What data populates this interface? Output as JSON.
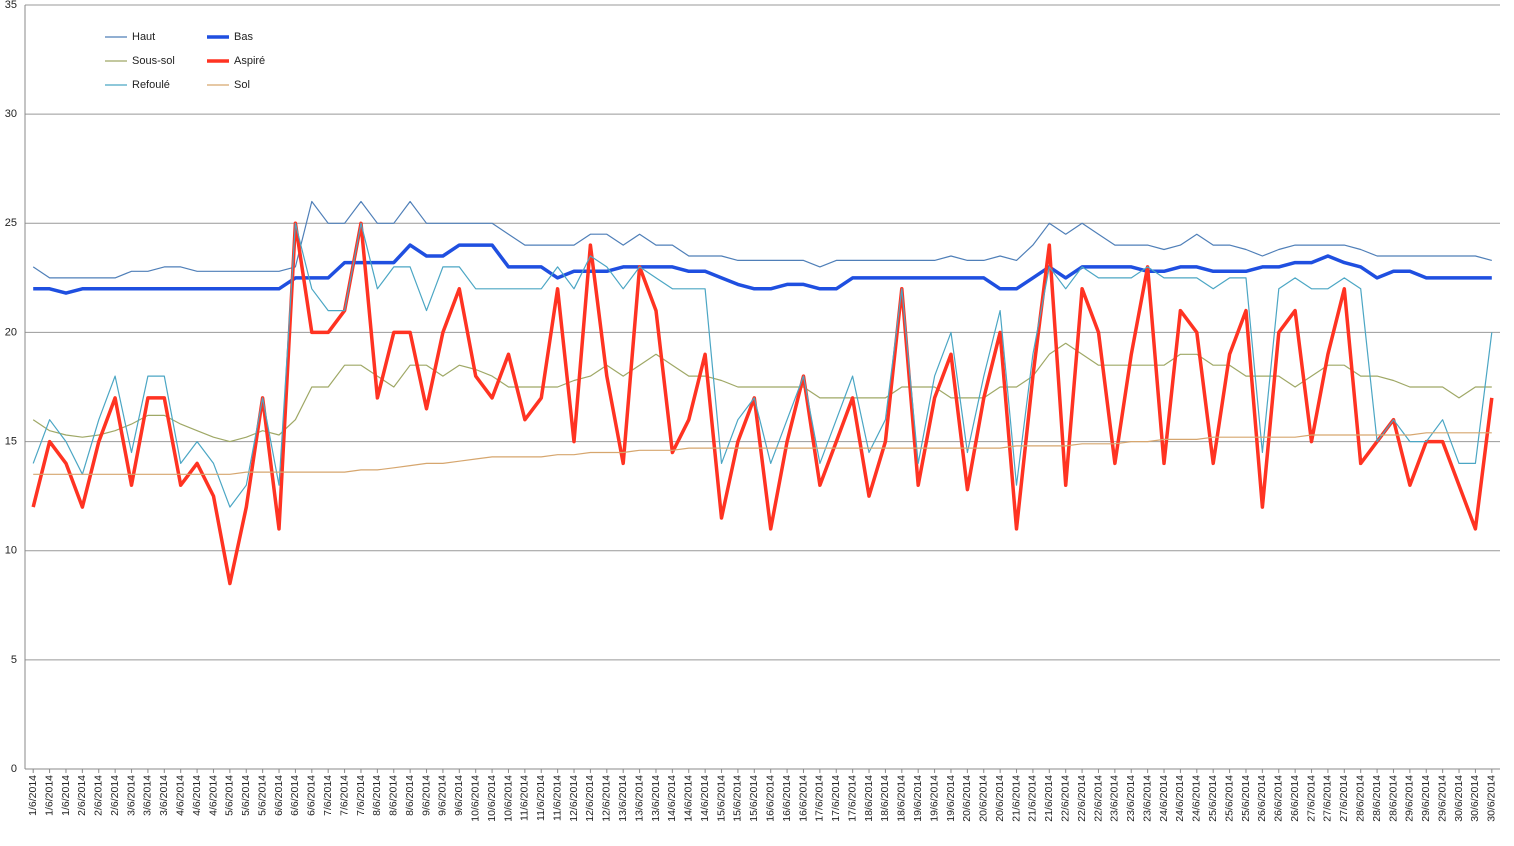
{
  "chart_data": {
    "type": "line",
    "categories": [
      "1/6/2014",
      "1/6/2014",
      "1/6/2014",
      "2/6/2014",
      "2/6/2014",
      "2/6/2014",
      "3/6/2014",
      "3/6/2014",
      "3/6/2014",
      "4/6/2014",
      "4/6/2014",
      "4/6/2014",
      "5/6/2014",
      "5/6/2014",
      "5/6/2014",
      "6/6/2014",
      "6/6/2014",
      "6/6/2014",
      "7/6/2014",
      "7/6/2014",
      "7/6/2014",
      "8/6/2014",
      "8/6/2014",
      "8/6/2014",
      "9/6/2014",
      "9/6/2014",
      "9/6/2014",
      "10/6/2014",
      "10/6/2014",
      "10/6/2014",
      "11/6/2014",
      "11/6/2014",
      "11/6/2014",
      "12/6/2014",
      "12/6/2014",
      "12/6/2014",
      "13/6/2014",
      "13/6/2014",
      "13/6/2014",
      "14/6/2014",
      "14/6/2014",
      "14/6/2014",
      "15/6/2014",
      "15/6/2014",
      "15/6/2014",
      "16/6/2014",
      "16/6/2014",
      "16/6/2014",
      "17/6/2014",
      "17/6/2014",
      "17/6/2014",
      "18/6/2014",
      "18/6/2014",
      "18/6/2014",
      "19/6/2014",
      "19/6/2014",
      "19/6/2014",
      "20/6/2014",
      "20/6/2014",
      "20/6/2014",
      "21/6/2014",
      "21/6/2014",
      "21/6/2014",
      "22/6/2014",
      "22/6/2014",
      "22/6/2014",
      "23/6/2014",
      "23/6/2014",
      "23/6/2014",
      "24/6/2014",
      "24/6/2014",
      "24/6/2014",
      "25/6/2014",
      "25/6/2014",
      "25/6/2014",
      "26/6/2014",
      "26/6/2014",
      "26/6/2014",
      "27/6/2014",
      "27/6/2014",
      "27/6/2014",
      "28/6/2014",
      "28/6/2014",
      "28/6/2014",
      "29/6/2014",
      "29/6/2014",
      "29/6/2014",
      "30/6/2014",
      "30/6/2014",
      "30/6/2014"
    ],
    "series": [
      {
        "name": "Haut",
        "color": "#4f7fb8",
        "line_width": 1.2,
        "values": [
          23,
          22.5,
          22.5,
          22.5,
          22.5,
          22.5,
          22.8,
          22.8,
          23,
          23,
          22.8,
          22.8,
          22.8,
          22.8,
          22.8,
          22.8,
          23,
          26,
          25,
          25,
          26,
          25,
          25,
          26,
          25,
          25,
          25,
          25,
          25,
          24.5,
          24,
          24,
          24,
          24,
          24.5,
          24.5,
          24,
          24.5,
          24,
          24,
          23.5,
          23.5,
          23.5,
          23.3,
          23.3,
          23.3,
          23.3,
          23.3,
          23,
          23.3,
          23.3,
          23.3,
          23.3,
          23.3,
          23.3,
          23.3,
          23.5,
          23.3,
          23.3,
          23.5,
          23.3,
          24,
          25,
          24.5,
          25,
          24.5,
          24,
          24,
          24,
          23.8,
          24,
          24.5,
          24,
          24,
          23.8,
          23.5,
          23.8,
          24,
          24,
          24,
          24,
          23.8,
          23.5,
          23.5,
          23.5,
          23.5,
          23.5,
          23.5,
          23.5,
          23.3
        ]
      },
      {
        "name": "Bas",
        "color": "#1f4fe0",
        "line_width": 3.5,
        "values": [
          22,
          22,
          21.8,
          22,
          22,
          22,
          22,
          22,
          22,
          22,
          22,
          22,
          22,
          22,
          22,
          22,
          22.5,
          22.5,
          22.5,
          23.2,
          23.2,
          23.2,
          23.2,
          24,
          23.5,
          23.5,
          24,
          24,
          24,
          23,
          23,
          23,
          22.5,
          22.8,
          22.8,
          22.8,
          23,
          23,
          23,
          23,
          22.8,
          22.8,
          22.5,
          22.2,
          22,
          22,
          22.2,
          22.2,
          22,
          22,
          22.5,
          22.5,
          22.5,
          22.5,
          22.5,
          22.5,
          22.5,
          22.5,
          22.5,
          22,
          22,
          22.5,
          23,
          22.5,
          23,
          23,
          23,
          23,
          22.8,
          22.8,
          23,
          23,
          22.8,
          22.8,
          22.8,
          23,
          23,
          23.2,
          23.2,
          23.5,
          23.2,
          23,
          22.5,
          22.8,
          22.8,
          22.5,
          22.5,
          22.5,
          22.5,
          22.5
        ]
      },
      {
        "name": "Sous-sol",
        "color": "#9fa866",
        "line_width": 1.2,
        "values": [
          16,
          15.5,
          15.3,
          15.2,
          15.3,
          15.5,
          15.8,
          16.2,
          16.2,
          15.8,
          15.5,
          15.2,
          15,
          15.2,
          15.5,
          15.3,
          16,
          17.5,
          17.5,
          18.5,
          18.5,
          18,
          17.5,
          18.5,
          18.5,
          18,
          18.5,
          18.3,
          18,
          17.5,
          17.5,
          17.5,
          17.5,
          17.8,
          18,
          18.5,
          18,
          18.5,
          19,
          18.5,
          18,
          18,
          17.8,
          17.5,
          17.5,
          17.5,
          17.5,
          17.5,
          17,
          17,
          17,
          17,
          17,
          17.5,
          17.5,
          17.5,
          17,
          17,
          17,
          17.5,
          17.5,
          18,
          19,
          19.5,
          19,
          18.5,
          18.5,
          18.5,
          18.5,
          18.5,
          19,
          19,
          18.5,
          18.5,
          18,
          18,
          18,
          17.5,
          18,
          18.5,
          18.5,
          18,
          18,
          17.8,
          17.5,
          17.5,
          17.5,
          17,
          17.5,
          17.5
        ]
      },
      {
        "name": "Aspiré",
        "color": "#ff3322",
        "line_width": 3.5,
        "values": [
          12,
          15,
          14,
          12,
          15,
          17,
          13,
          17,
          17,
          13,
          14,
          12.5,
          8.5,
          12,
          17,
          11,
          25,
          20,
          20,
          21,
          25,
          17,
          20,
          20,
          16.5,
          20,
          22,
          18,
          17,
          19,
          16,
          17,
          22,
          15,
          24,
          18,
          14,
          23,
          21,
          14.5,
          16,
          19,
          11.5,
          15,
          17,
          11,
          15,
          18,
          13,
          15,
          17,
          12.5,
          15,
          22,
          13,
          17,
          19,
          12.8,
          17,
          20,
          11,
          18,
          24,
          13,
          22,
          20,
          14,
          19,
          23,
          14,
          21,
          20,
          14,
          19,
          21,
          12,
          20,
          21,
          15,
          19,
          22,
          14,
          15,
          16,
          13,
          15,
          15,
          13,
          11,
          17
        ]
      },
      {
        "name": "Refoulé",
        "color": "#4ba6c4",
        "line_width": 1.2,
        "values": [
          14,
          16,
          15,
          13.5,
          16,
          18,
          14.5,
          18,
          18,
          14,
          15,
          14,
          12,
          13,
          17,
          13,
          25,
          22,
          21,
          21,
          25,
          22,
          23,
          23,
          21,
          23,
          23,
          22,
          22,
          22,
          22,
          22,
          23,
          22,
          23.5,
          23,
          22,
          23,
          22.5,
          22,
          22,
          22,
          14,
          16,
          17,
          14,
          16,
          18,
          14,
          16,
          18,
          14.5,
          16,
          22,
          14,
          18,
          20,
          14.5,
          18,
          21,
          13,
          19,
          23,
          22,
          23,
          22.5,
          22.5,
          22.5,
          23,
          22.5,
          22.5,
          22.5,
          22,
          22.5,
          22.5,
          14.5,
          22,
          22.5,
          22,
          22,
          22.5,
          22,
          15,
          16,
          15,
          15,
          16,
          14,
          14,
          20
        ]
      },
      {
        "name": "Sol",
        "color": "#d6a66e",
        "line_width": 1.2,
        "values": [
          13.5,
          13.5,
          13.5,
          13.5,
          13.5,
          13.5,
          13.5,
          13.5,
          13.5,
          13.5,
          13.5,
          13.5,
          13.5,
          13.6,
          13.6,
          13.6,
          13.6,
          13.6,
          13.6,
          13.6,
          13.7,
          13.7,
          13.8,
          13.9,
          14,
          14,
          14.1,
          14.2,
          14.3,
          14.3,
          14.3,
          14.3,
          14.4,
          14.4,
          14.5,
          14.5,
          14.5,
          14.6,
          14.6,
          14.6,
          14.7,
          14.7,
          14.7,
          14.7,
          14.7,
          14.7,
          14.7,
          14.7,
          14.7,
          14.7,
          14.7,
          14.7,
          14.7,
          14.7,
          14.7,
          14.7,
          14.7,
          14.7,
          14.7,
          14.7,
          14.8,
          14.8,
          14.8,
          14.8,
          14.9,
          14.9,
          14.9,
          15,
          15,
          15.1,
          15.1,
          15.1,
          15.2,
          15.2,
          15.2,
          15.2,
          15.2,
          15.2,
          15.3,
          15.3,
          15.3,
          15.3,
          15.3,
          15.3,
          15.3,
          15.4,
          15.4,
          15.4,
          15.4,
          15.4
        ]
      }
    ],
    "ylim": [
      0,
      35
    ],
    "yticks": [
      0,
      5,
      10,
      15,
      20,
      25,
      30,
      35
    ],
    "grid": true,
    "legend": "upper left"
  }
}
